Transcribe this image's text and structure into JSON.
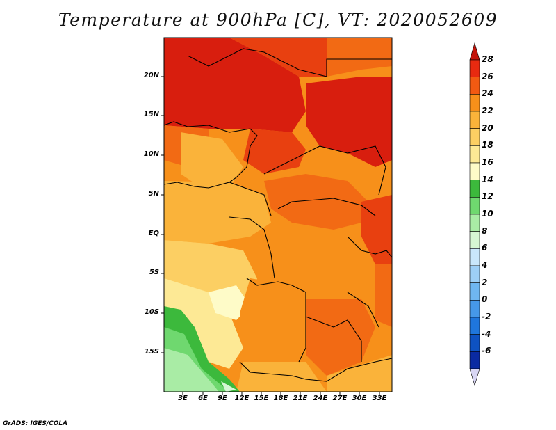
{
  "title": "Temperature at 900hPa [C], VT: 2020052609",
  "footer": "GrADS: IGES/COLA",
  "lat_labels": [
    "20N",
    "15N",
    "10N",
    "5N",
    "EQ",
    "5S",
    "10S",
    "15S"
  ],
  "lon_labels": [
    "3E",
    "6E",
    "9E",
    "12E",
    "15E",
    "18E",
    "21E",
    "24E",
    "27E",
    "30E",
    "33E"
  ],
  "colorbar": {
    "labels": [
      "28",
      "26",
      "24",
      "22",
      "20",
      "18",
      "16",
      "14",
      "12",
      "10",
      "8",
      "6",
      "4",
      "2",
      "0",
      "-2",
      "-4",
      "-6"
    ],
    "colors": [
      "#e82a10",
      "#f25a12",
      "#f7901a",
      "#fab33a",
      "#fccf63",
      "#fde995",
      "#fefbc8",
      "#3cb93c",
      "#6fd86f",
      "#a9eca5",
      "#d6f7d3",
      "#c9e7fb",
      "#9dcff6",
      "#6fb6f0",
      "#4698e8",
      "#1f76dc",
      "#0e52c2",
      "#0a2aa2",
      "#061476"
    ],
    "overflow_top": "#c4140a",
    "overflow_bottom": "#d8d6f4"
  },
  "legend": {
    "greens": [
      "#3cb93c",
      "#6fd86f",
      "#a9eca5"
    ],
    "reds": [
      "#d81e0e",
      "#e84010",
      "#f26a14"
    ],
    "oranges": [
      "#f7901a",
      "#fab33a",
      "#fccf63"
    ],
    "pale": [
      "#fde995",
      "#fefbc8"
    ],
    "borders": "#000000"
  }
}
